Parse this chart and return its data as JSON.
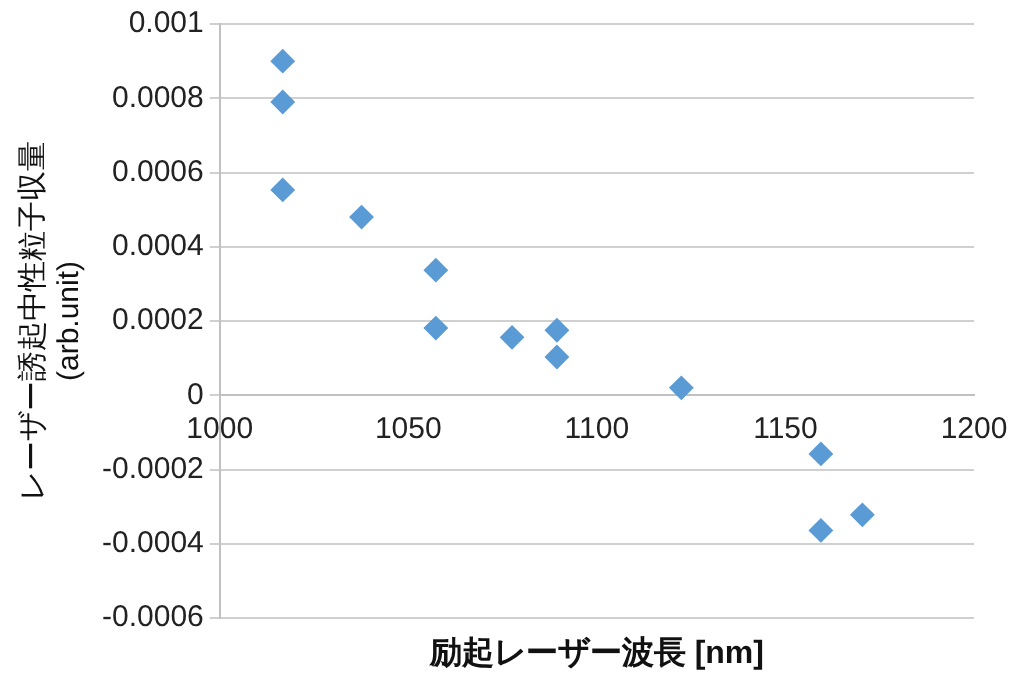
{
  "chart_data": {
    "type": "scatter",
    "xlabel": "励起レーザー波長 [nm]",
    "ylabel": "レーザー誘起中性粒子収量\n(arb.unit)",
    "x": [
      1016.7,
      1016.7,
      1016.7,
      1037.6,
      1057.3,
      1057.3,
      1077.5,
      1089.4,
      1089.4,
      1122.4,
      1159.4,
      1159.4,
      1170.4
    ],
    "series": [
      {
        "color": "#5b9bd5",
        "values": [
          0.0009,
          0.00079,
          0.000553,
          0.00048,
          0.000337,
          0.000181,
          0.000156,
          0.000175,
          0.000103,
          2e-05,
          -0.000158,
          -0.000364,
          -0.000322
        ]
      }
    ],
    "xlim": [
      1000,
      1200
    ],
    "xticks": [
      1000,
      1050,
      1100,
      1150,
      1200
    ],
    "ylim": [
      -0.0006,
      0.001
    ],
    "yticks": [
      -0.0006,
      -0.0004,
      -0.0002,
      0,
      0.0002,
      0.0004,
      0.0006,
      0.0008,
      0.001
    ],
    "grid": "y",
    "marker": "diamond",
    "legend": false
  }
}
